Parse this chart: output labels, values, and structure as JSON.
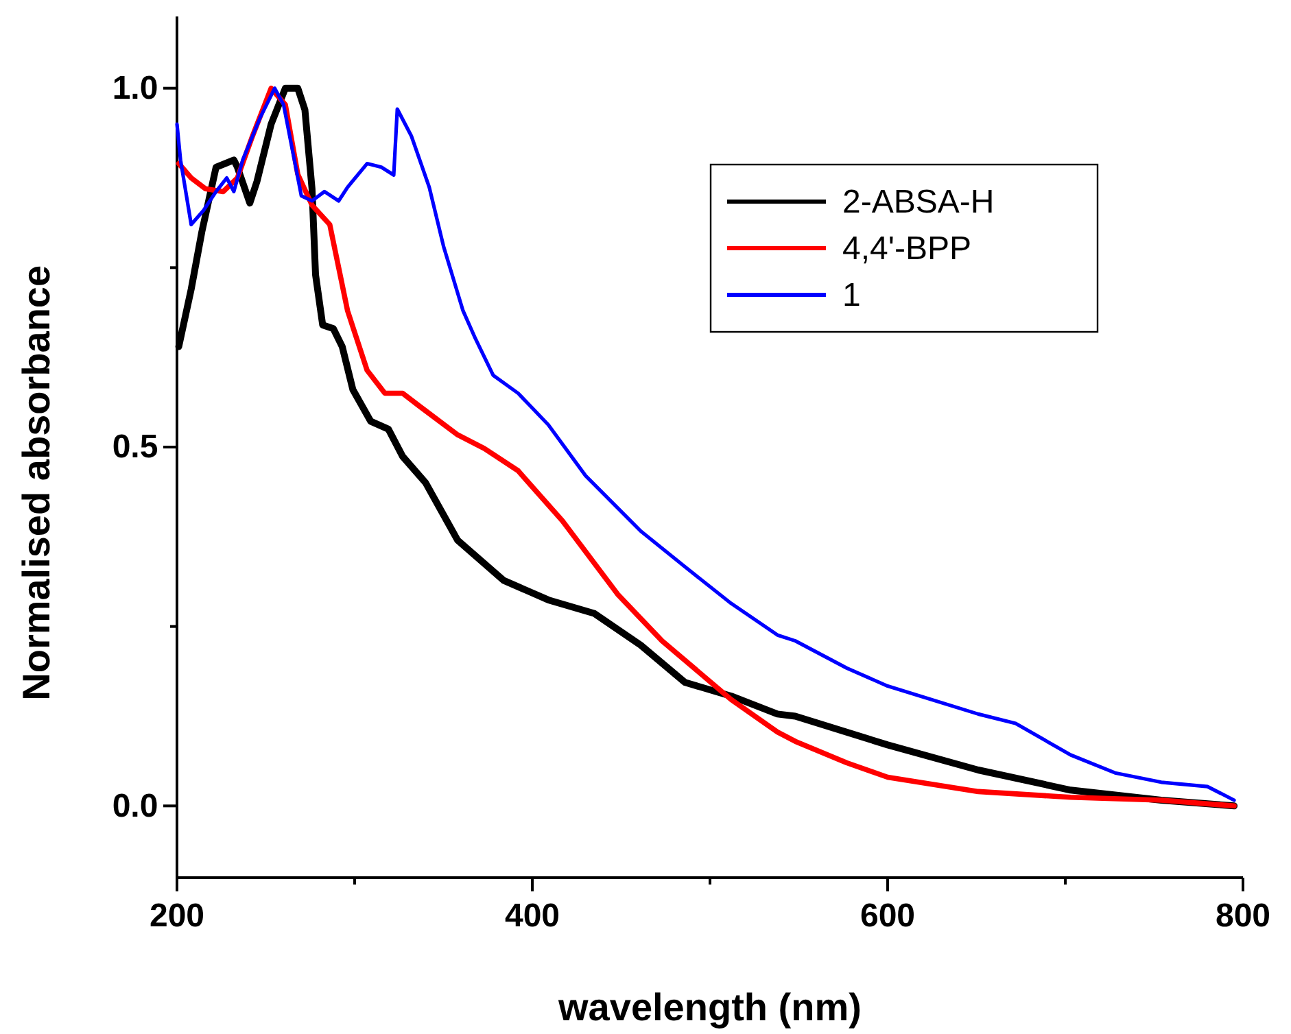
{
  "chart_data": {
    "type": "line",
    "xlabel": "wavelength (nm)",
    "ylabel": "Normalised absorbance",
    "xlim": [
      200,
      800
    ],
    "ylim": [
      -0.1,
      1.1
    ],
    "xticks": [
      200,
      {
        "value": 300,
        "label": null
      },
      400,
      {
        "value": 500,
        "label": null
      },
      600,
      {
        "value": 700,
        "label": null
      },
      800
    ],
    "yticks": [
      {
        "value": 0,
        "label": "0.0"
      },
      {
        "value": 0.25,
        "label": null
      },
      {
        "value": 0.5,
        "label": "0.5"
      },
      {
        "value": 0.75,
        "label": null
      },
      {
        "value": 1,
        "label": "1.0"
      }
    ],
    "grid": false,
    "legend": "top right",
    "line_style": "solid",
    "marker": "none",
    "series": [
      {
        "name": "2-ABSA-H",
        "color": "#000000",
        "x": [
          201,
          208,
          214,
          222,
          232,
          234,
          241,
          245,
          253,
          261,
          268,
          272,
          276,
          278,
          282,
          288,
          293,
          299,
          309,
          319,
          327,
          340,
          358,
          384,
          409,
          435,
          461,
          486,
          512,
          538,
          548,
          600,
          651,
          703,
          754,
          795
        ],
        "values": [
          0.64,
          0.72,
          0.8,
          0.89,
          0.9,
          0.89,
          0.84,
          0.87,
          0.95,
          1.0,
          1.0,
          0.97,
          0.86,
          0.74,
          0.67,
          0.665,
          0.64,
          0.58,
          0.536,
          0.525,
          0.487,
          0.45,
          0.37,
          0.314,
          0.287,
          0.268,
          0.224,
          0.172,
          0.153,
          0.128,
          0.125,
          0.085,
          0.05,
          0.022,
          0.008,
          0.0
        ]
      },
      {
        "name": "4,4'-BPP",
        "color": "#ff0000",
        "x": [
          201,
          208,
          216,
          226,
          234,
          242,
          253,
          261,
          268,
          276,
          286,
          291,
          296,
          307,
          317,
          327,
          337,
          358,
          373,
          392,
          417,
          448,
          473,
          512,
          538,
          548,
          577,
          600,
          651,
          703,
          754,
          795
        ],
        "values": [
          0.895,
          0.875,
          0.86,
          0.856,
          0.875,
          0.93,
          1.0,
          0.977,
          0.88,
          0.837,
          0.81,
          0.75,
          0.69,
          0.607,
          0.575,
          0.575,
          0.556,
          0.517,
          0.498,
          0.467,
          0.397,
          0.295,
          0.23,
          0.148,
          0.103,
          0.09,
          0.06,
          0.04,
          0.02,
          0.012,
          0.008,
          0.0
        ]
      },
      {
        "name": "1",
        "color": "#0000ff",
        "x": [
          200,
          202,
          208,
          215,
          222,
          228,
          232,
          237,
          247,
          255,
          260,
          270,
          276,
          283,
          291,
          296,
          307,
          315,
          322,
          324,
          332,
          342,
          350,
          361,
          368,
          378,
          392,
          409,
          430,
          461,
          486,
          512,
          538,
          548,
          577,
          600,
          651,
          672,
          703,
          728,
          754,
          780,
          795
        ],
        "values": [
          0.95,
          0.9,
          0.81,
          0.83,
          0.856,
          0.875,
          0.856,
          0.9,
          0.96,
          1.0,
          0.977,
          0.85,
          0.843,
          0.856,
          0.843,
          0.862,
          0.895,
          0.89,
          0.879,
          0.971,
          0.933,
          0.862,
          0.78,
          0.69,
          0.651,
          0.6,
          0.575,
          0.531,
          0.46,
          0.383,
          0.333,
          0.282,
          0.238,
          0.23,
          0.192,
          0.167,
          0.128,
          0.115,
          0.071,
          0.046,
          0.033,
          0.027,
          0.008
        ]
      }
    ]
  }
}
